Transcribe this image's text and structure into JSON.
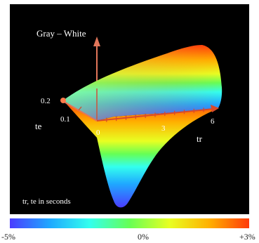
{
  "chart_data": {
    "type": "surface",
    "title": "",
    "zlabel": "Gray – White",
    "xlabel": "tr",
    "ylabel": "te",
    "note": "tr, te in seconds",
    "x_ticks": [
      "0",
      "3",
      "6"
    ],
    "y_ticks": [
      "0.1",
      "0.2"
    ],
    "xlim": [
      0,
      6
    ],
    "ylim": [
      0,
      0.2
    ],
    "colorbar": {
      "min_label": "-5%",
      "mid_label": "0%",
      "max_label": "+3%",
      "range": [
        -5,
        3
      ],
      "colors": [
        "#4a3cff",
        "#1fa8ff",
        "#33ffee",
        "#66ff55",
        "#e8ff22",
        "#ffb000",
        "#ff3a0a"
      ]
    }
  }
}
